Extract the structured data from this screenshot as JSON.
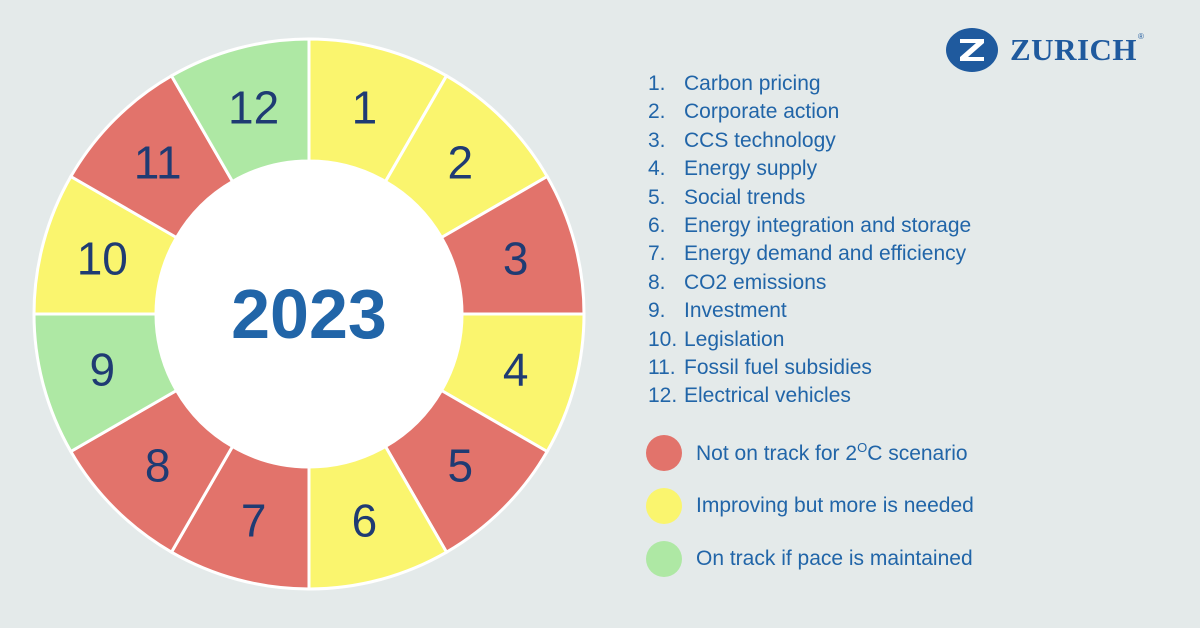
{
  "brand": {
    "name": "ZURICH",
    "registered": "®",
    "color": "#1f5a9e"
  },
  "wheel": {
    "center_label": "2023",
    "text_color": "#1f3b73",
    "center_text_color": "#2165a8",
    "segments": [
      {
        "number": "1",
        "status": "improving"
      },
      {
        "number": "2",
        "status": "improving"
      },
      {
        "number": "3",
        "status": "not_on_track"
      },
      {
        "number": "4",
        "status": "improving"
      },
      {
        "number": "5",
        "status": "not_on_track"
      },
      {
        "number": "6",
        "status": "improving"
      },
      {
        "number": "7",
        "status": "not_on_track"
      },
      {
        "number": "8",
        "status": "not_on_track"
      },
      {
        "number": "9",
        "status": "on_track"
      },
      {
        "number": "10",
        "status": "improving"
      },
      {
        "number": "11",
        "status": "not_on_track"
      },
      {
        "number": "12",
        "status": "on_track"
      }
    ]
  },
  "legend": {
    "items": [
      {
        "num": "1.",
        "label": "Carbon pricing"
      },
      {
        "num": "2.",
        "label": "Corporate action"
      },
      {
        "num": "3.",
        "label": "CCS technology"
      },
      {
        "num": "4.",
        "label": "Energy supply"
      },
      {
        "num": "5.",
        "label": "Social trends"
      },
      {
        "num": "6.",
        "label": "Energy integration and storage"
      },
      {
        "num": "7.",
        "label": "Energy demand and efficiency"
      },
      {
        "num": "8.",
        "label": "CO2 emissions"
      },
      {
        "num": "9.",
        "label": "Investment"
      },
      {
        "num": "10.",
        "label": "Legislation"
      },
      {
        "num": "11.",
        "label": "Fossil fuel subsidies"
      },
      {
        "num": "12.",
        "label": "Electrical vehicles"
      }
    ]
  },
  "status_legend": {
    "not_on_track": {
      "label_pre": "Not on track for 2",
      "label_sup": "O",
      "label_post": "C scenario",
      "color": "#e2736b"
    },
    "improving": {
      "label": "Improving but more is needed",
      "color": "#faf56e"
    },
    "on_track": {
      "label": "On track if pace is maintained",
      "color": "#aee8a4"
    }
  }
}
